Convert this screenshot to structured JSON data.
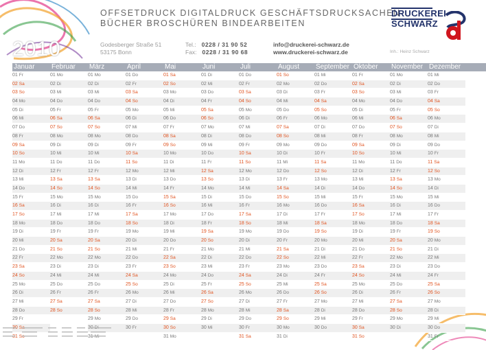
{
  "year": "2010",
  "services": {
    "line1": "OFFSETDRUCK   DIGITALDRUCK   GESCHÄFTSDRUCKSACHEN",
    "line2": "BÜCHER   BROSCHÜREN   BINDEARBEITEN"
  },
  "address": {
    "street": "Godesberger Straße 51",
    "city": "53175 Bonn"
  },
  "contact": {
    "tel_label": "Tel.:",
    "tel": "0228 / 31 90 52",
    "fax_label": "Fax:",
    "fax": "0228 / 31 90 68",
    "email": "info@druckerei-schwarz.de",
    "web": "www.druckerei-schwarz.de"
  },
  "logo": {
    "line1": "DRUCKEREI",
    "line2": "SCHWARZ",
    "owner": "Inh.: Heinz Schwarz"
  },
  "colors": {
    "header": "#a6acb7",
    "weekend": "#e0521e",
    "logo_blue": "#23336b",
    "logo_red": "#d0151e"
  },
  "months": [
    {
      "name": "Januar",
      "start": 5,
      "days": 31
    },
    {
      "name": "Februar",
      "start": 1,
      "days": 28
    },
    {
      "name": "März",
      "start": 1,
      "days": 31
    },
    {
      "name": "April",
      "start": 4,
      "days": 30
    },
    {
      "name": "Mai",
      "start": 6,
      "days": 31
    },
    {
      "name": "Juni",
      "start": 2,
      "days": 30
    },
    {
      "name": "Juli",
      "start": 4,
      "days": 31
    },
    {
      "name": "August",
      "start": 0,
      "days": 31
    },
    {
      "name": "September",
      "start": 3,
      "days": 30
    },
    {
      "name": "Oktober",
      "start": 5,
      "days": 31
    },
    {
      "name": "November",
      "start": 1,
      "days": 30
    },
    {
      "name": "Dezember",
      "start": 3,
      "days": 31
    }
  ],
  "weekdays": [
    "So",
    "Mo",
    "Di",
    "Mi",
    "Do",
    "Fr",
    "Sa"
  ]
}
